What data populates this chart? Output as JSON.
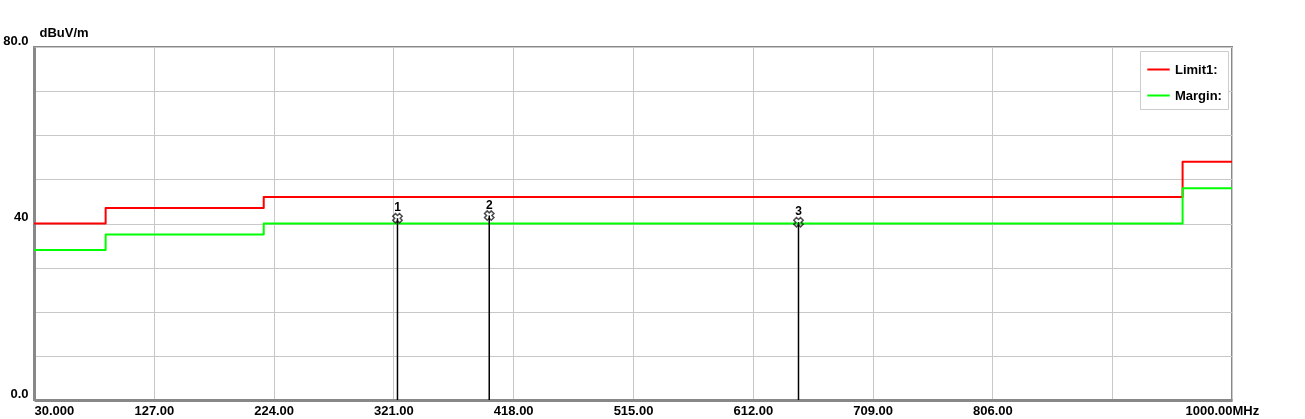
{
  "chart_data": {
    "type": "step",
    "xlabel": "MHz",
    "ylabel": "dBuV/m",
    "xlim": [
      30,
      1000
    ],
    "ylim": [
      0,
      80
    ],
    "xticks": [
      {
        "value": 30,
        "label": "30.000"
      },
      {
        "value": 127,
        "label": "127.00"
      },
      {
        "value": 224,
        "label": "224.00"
      },
      {
        "value": 321,
        "label": "321.00"
      },
      {
        "value": 418,
        "label": "418.00"
      },
      {
        "value": 515,
        "label": "515.00"
      },
      {
        "value": 612,
        "label": "612.00"
      },
      {
        "value": 709,
        "label": "709.00"
      },
      {
        "value": 806,
        "label": "806.00"
      },
      {
        "value": 903,
        "label": null
      },
      {
        "value": 1000,
        "label": "1000.00"
      }
    ],
    "yticks": [
      {
        "value": 0,
        "label": "0.0"
      },
      {
        "value": 10,
        "label": null
      },
      {
        "value": 20,
        "label": null
      },
      {
        "value": 30,
        "label": null
      },
      {
        "value": 40,
        "label": "40"
      },
      {
        "value": 50,
        "label": null
      },
      {
        "value": 60,
        "label": null
      },
      {
        "value": 70,
        "label": null
      },
      {
        "value": 80,
        "label": "80.0"
      }
    ],
    "grid": true,
    "legend": "top right",
    "line_style": "solid",
    "series": [
      {
        "name": "Limit1:",
        "color": "#ff0000",
        "x": [
          30,
          88,
          216,
          960,
          1000
        ],
        "values": [
          40,
          43.5,
          46,
          54,
          54
        ]
      },
      {
        "name": "Margin:",
        "color": "#00ff00",
        "x": [
          30,
          88,
          216,
          960,
          1000
        ],
        "values": [
          34,
          37.5,
          40,
          48,
          48
        ]
      },
      {
        "color": "#000000",
        "type": "lollipop",
        "marker": "cross",
        "x": [
          324.3,
          398.6,
          649
        ],
        "values": [
          41.2,
          41.8,
          40.3
        ]
      }
    ],
    "annotations": [
      {
        "text": "1",
        "x": 324.3,
        "y": 41.2
      },
      {
        "text": "2",
        "x": 398.6,
        "y": 41.8
      },
      {
        "text": "3",
        "x": 649,
        "y": 40.3
      }
    ]
  }
}
